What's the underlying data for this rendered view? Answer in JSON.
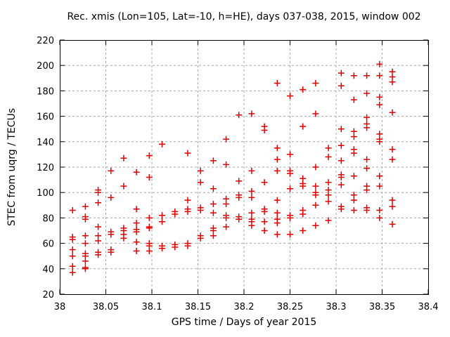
{
  "chart_data": {
    "type": "scatter",
    "title": "Rec. xmis (Lon=105, Lat=-10, h=HE), days 037-038, 2015, window 002",
    "xlabel": "GPS time / Days of year 2015",
    "ylabel": "STEC from uqrg / TECUs",
    "xlim": [
      38,
      38.4
    ],
    "ylim": [
      20,
      220
    ],
    "xticks": {
      "values": [
        38,
        38.05,
        38.1,
        38.15,
        38.2,
        38.25,
        38.3,
        38.35,
        38.4
      ],
      "labels": [
        "38",
        "38.05",
        "38.1",
        "38.15",
        "38.2",
        "38.25",
        "38.3",
        "38.35",
        "38.4"
      ]
    },
    "yticks": {
      "values": [
        20,
        40,
        60,
        80,
        100,
        120,
        140,
        160,
        180,
        200,
        220
      ],
      "labels": [
        "20",
        "40",
        "60",
        "80",
        "100",
        "120",
        "140",
        "160",
        "180",
        "200",
        "220"
      ]
    },
    "grid": true,
    "legend": "none",
    "marker": "plus",
    "colors": {
      "marker": "#e00000",
      "grid": "#a8a8a8",
      "frame": "#000000"
    },
    "points": [
      [
        38.0139,
        86
      ],
      [
        38.0139,
        65
      ],
      [
        38.0139,
        63
      ],
      [
        38.0139,
        55
      ],
      [
        38.0139,
        50
      ],
      [
        38.0139,
        42
      ],
      [
        38.0139,
        37
      ],
      [
        38.0278,
        89
      ],
      [
        38.0278,
        81
      ],
      [
        38.0278,
        79
      ],
      [
        38.0278,
        66
      ],
      [
        38.0278,
        60
      ],
      [
        38.0278,
        52
      ],
      [
        38.0278,
        50
      ],
      [
        38.0278,
        46
      ],
      [
        38.0278,
        41
      ],
      [
        38.0278,
        40
      ],
      [
        38.0417,
        102
      ],
      [
        38.0417,
        100
      ],
      [
        38.0417,
        92
      ],
      [
        38.0417,
        73
      ],
      [
        38.0417,
        66
      ],
      [
        38.0417,
        62
      ],
      [
        38.0417,
        53
      ],
      [
        38.0417,
        51
      ],
      [
        38.0556,
        117
      ],
      [
        38.0556,
        96
      ],
      [
        38.0556,
        69
      ],
      [
        38.0556,
        67
      ],
      [
        38.0556,
        55
      ],
      [
        38.0556,
        53
      ],
      [
        38.0694,
        127
      ],
      [
        38.0694,
        105
      ],
      [
        38.0694,
        72
      ],
      [
        38.0694,
        70
      ],
      [
        38.0694,
        67
      ],
      [
        38.0694,
        64
      ],
      [
        38.0833,
        116
      ],
      [
        38.0833,
        87
      ],
      [
        38.0833,
        76
      ],
      [
        38.0833,
        71
      ],
      [
        38.0833,
        69
      ],
      [
        38.0833,
        61
      ],
      [
        38.0833,
        54
      ],
      [
        38.0972,
        129
      ],
      [
        38.0972,
        112
      ],
      [
        38.0972,
        80
      ],
      [
        38.0972,
        73
      ],
      [
        38.0972,
        72
      ],
      [
        38.0972,
        60
      ],
      [
        38.0972,
        58
      ],
      [
        38.0972,
        54
      ],
      [
        38.1111,
        138
      ],
      [
        38.1111,
        82
      ],
      [
        38.1111,
        77
      ],
      [
        38.1111,
        58
      ],
      [
        38.1111,
        56
      ],
      [
        38.125,
        85
      ],
      [
        38.125,
        83
      ],
      [
        38.125,
        59
      ],
      [
        38.125,
        57
      ],
      [
        38.1389,
        131
      ],
      [
        38.1389,
        94
      ],
      [
        38.1389,
        87
      ],
      [
        38.1389,
        85
      ],
      [
        38.1389,
        60
      ],
      [
        38.1389,
        58
      ],
      [
        38.1528,
        117
      ],
      [
        38.1528,
        108
      ],
      [
        38.1528,
        88
      ],
      [
        38.1528,
        86
      ],
      [
        38.1528,
        66
      ],
      [
        38.1528,
        64
      ],
      [
        38.1667,
        125
      ],
      [
        38.1667,
        103
      ],
      [
        38.1667,
        91
      ],
      [
        38.1667,
        84
      ],
      [
        38.1667,
        72
      ],
      [
        38.1667,
        70
      ],
      [
        38.1667,
        66
      ],
      [
        38.1806,
        142
      ],
      [
        38.1806,
        122
      ],
      [
        38.1806,
        95
      ],
      [
        38.1806,
        91
      ],
      [
        38.1806,
        82
      ],
      [
        38.1806,
        80
      ],
      [
        38.1806,
        73
      ],
      [
        38.1944,
        161
      ],
      [
        38.1944,
        109
      ],
      [
        38.1944,
        98
      ],
      [
        38.1944,
        96
      ],
      [
        38.1944,
        81
      ],
      [
        38.1944,
        79
      ],
      [
        38.2083,
        162
      ],
      [
        38.2083,
        117
      ],
      [
        38.2083,
        101
      ],
      [
        38.2083,
        96
      ],
      [
        38.2083,
        84
      ],
      [
        38.2083,
        79
      ],
      [
        38.2083,
        77
      ],
      [
        38.2083,
        74
      ],
      [
        38.2222,
        152
      ],
      [
        38.2222,
        149
      ],
      [
        38.2222,
        108
      ],
      [
        38.2222,
        87
      ],
      [
        38.2222,
        85
      ],
      [
        38.2222,
        77
      ],
      [
        38.2222,
        70
      ],
      [
        38.2361,
        186
      ],
      [
        38.2361,
        135
      ],
      [
        38.2361,
        126
      ],
      [
        38.2361,
        117
      ],
      [
        38.2361,
        94
      ],
      [
        38.2361,
        84
      ],
      [
        38.2361,
        79
      ],
      [
        38.2361,
        76
      ],
      [
        38.2361,
        67
      ],
      [
        38.25,
        176
      ],
      [
        38.25,
        130
      ],
      [
        38.25,
        117
      ],
      [
        38.25,
        115
      ],
      [
        38.25,
        103
      ],
      [
        38.25,
        82
      ],
      [
        38.25,
        80
      ],
      [
        38.25,
        67
      ],
      [
        38.2639,
        181
      ],
      [
        38.2639,
        152
      ],
      [
        38.2639,
        111
      ],
      [
        38.2639,
        107
      ],
      [
        38.2639,
        105
      ],
      [
        38.2639,
        86
      ],
      [
        38.2639,
        83
      ],
      [
        38.2639,
        70
      ],
      [
        38.2778,
        186
      ],
      [
        38.2778,
        162
      ],
      [
        38.2778,
        120
      ],
      [
        38.2778,
        105
      ],
      [
        38.2778,
        100
      ],
      [
        38.2778,
        98
      ],
      [
        38.2778,
        90
      ],
      [
        38.2778,
        74
      ],
      [
        38.2917,
        135
      ],
      [
        38.2917,
        128
      ],
      [
        38.2917,
        108
      ],
      [
        38.2917,
        102
      ],
      [
        38.2917,
        98
      ],
      [
        38.2917,
        93
      ],
      [
        38.2917,
        78
      ],
      [
        38.3056,
        194
      ],
      [
        38.3056,
        184
      ],
      [
        38.3056,
        150
      ],
      [
        38.3056,
        137
      ],
      [
        38.3056,
        125
      ],
      [
        38.3056,
        114
      ],
      [
        38.3056,
        112
      ],
      [
        38.3056,
        106
      ],
      [
        38.3056,
        89
      ],
      [
        38.3056,
        87
      ],
      [
        38.3194,
        192
      ],
      [
        38.3194,
        173
      ],
      [
        38.3194,
        148
      ],
      [
        38.3194,
        144
      ],
      [
        38.3194,
        134
      ],
      [
        38.3194,
        131
      ],
      [
        38.3194,
        113
      ],
      [
        38.3194,
        98
      ],
      [
        38.3194,
        94
      ],
      [
        38.3194,
        86
      ],
      [
        38.3333,
        192
      ],
      [
        38.3333,
        178
      ],
      [
        38.3333,
        159
      ],
      [
        38.3333,
        154
      ],
      [
        38.3333,
        151
      ],
      [
        38.3333,
        126
      ],
      [
        38.3333,
        119
      ],
      [
        38.3333,
        105
      ],
      [
        38.3333,
        102
      ],
      [
        38.3333,
        88
      ],
      [
        38.3333,
        86
      ],
      [
        38.3472,
        201
      ],
      [
        38.3472,
        192
      ],
      [
        38.3472,
        175
      ],
      [
        38.3472,
        169
      ],
      [
        38.3472,
        146
      ],
      [
        38.3472,
        142
      ],
      [
        38.3472,
        140
      ],
      [
        38.3472,
        113
      ],
      [
        38.3472,
        105
      ],
      [
        38.3472,
        86
      ],
      [
        38.3472,
        80
      ],
      [
        38.3611,
        195
      ],
      [
        38.3611,
        191
      ],
      [
        38.3611,
        187
      ],
      [
        38.3611,
        163
      ],
      [
        38.3611,
        134
      ],
      [
        38.3611,
        126
      ],
      [
        38.3611,
        94
      ],
      [
        38.3611,
        89
      ],
      [
        38.3611,
        75
      ]
    ]
  }
}
